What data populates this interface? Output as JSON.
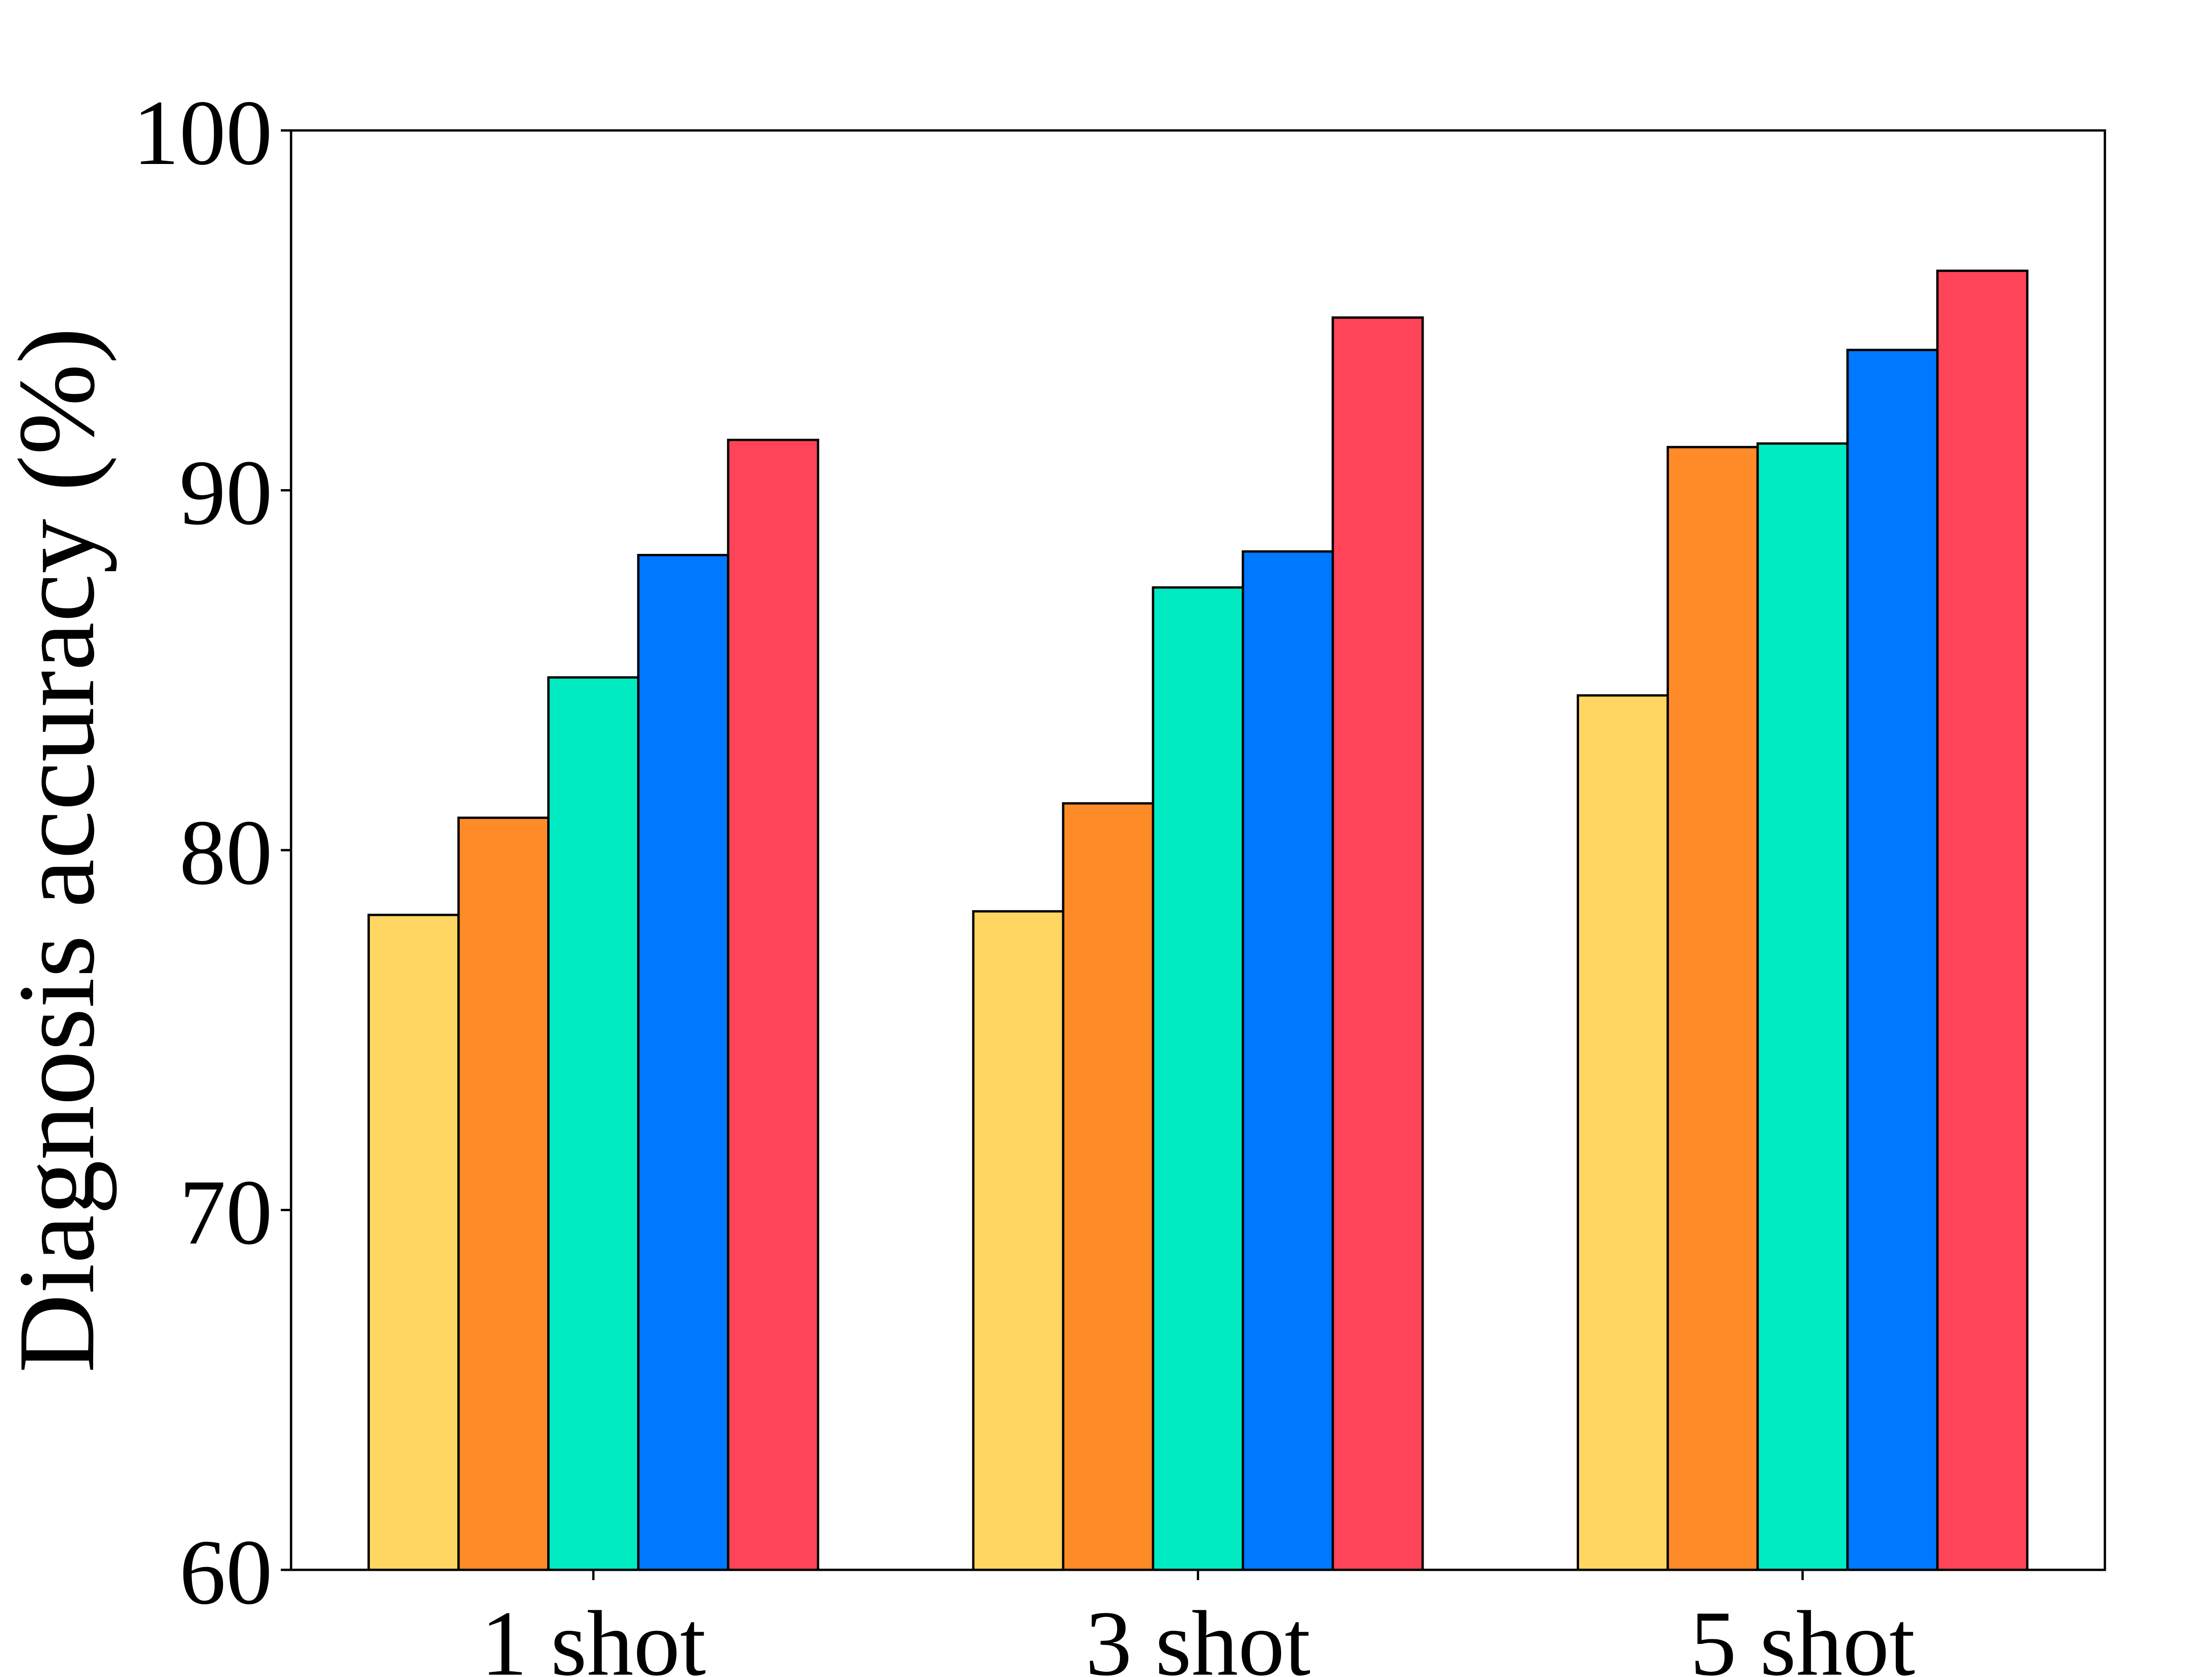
{
  "chart_data": {
    "type": "bar",
    "title": "",
    "xlabel": "",
    "ylabel": "Diagnosis accuracy (%)",
    "categories": [
      "1 shot",
      "3 shot",
      "5 shot"
    ],
    "ylim": [
      60,
      100
    ],
    "yticks": [
      60,
      70,
      80,
      90,
      100
    ],
    "grid": false,
    "legend": "none",
    "series": [
      {
        "color": "#FFD662",
        "values": [
          78.2,
          78.3,
          84.3
        ]
      },
      {
        "color": "#FF8A28",
        "values": [
          80.9,
          81.3,
          91.2
        ]
      },
      {
        "color": "#00EBC2",
        "values": [
          84.8,
          87.3,
          91.3
        ]
      },
      {
        "color": "#0078FF",
        "values": [
          88.2,
          88.3,
          93.9
        ]
      },
      {
        "color": "#FF4358",
        "values": [
          91.4,
          94.8,
          96.1
        ]
      }
    ]
  }
}
